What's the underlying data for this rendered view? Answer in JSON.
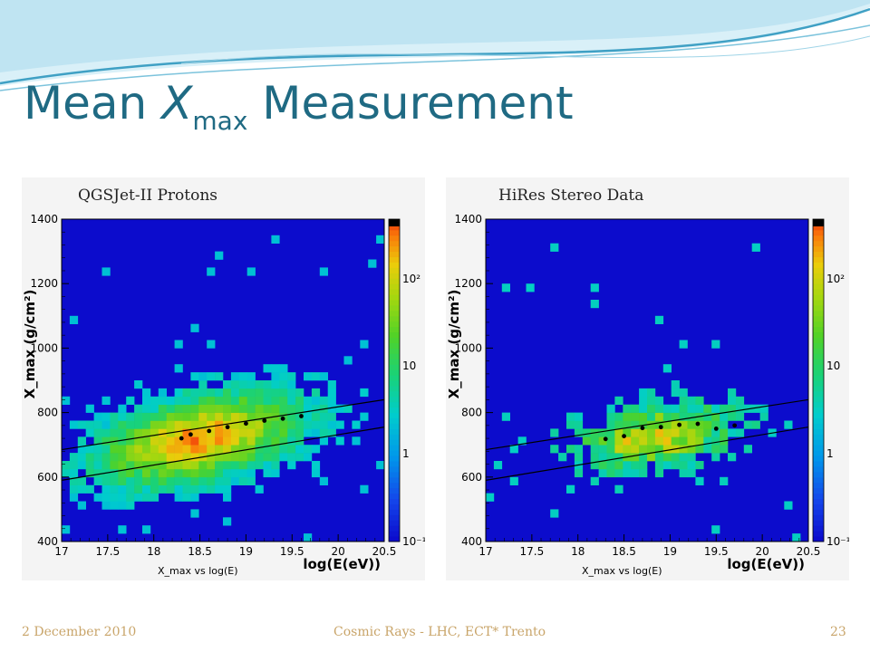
{
  "slide": {
    "title_prefix": "Mean ",
    "title_symbol": "X",
    "title_subscript": "max",
    "title_suffix": " Measurement",
    "footer_date": "2 December 2010",
    "footer_center": "Cosmic Rays - LHC, ECT* Trento",
    "page_number": "23"
  },
  "chart_data": [
    {
      "type": "heatmap",
      "title": "QGSJet-II Protons",
      "xlabel": "log(E(eV))",
      "ylabel": "X_max (g/cm²)",
      "footer_label": "X_max vs log(E)",
      "xlim": [
        17,
        20.5
      ],
      "ylim": [
        400,
        1400
      ],
      "x_ticks": [
        "17",
        "17.5",
        "18",
        "18.5",
        "19",
        "19.5",
        "20",
        "20.5"
      ],
      "y_ticks": [
        "400",
        "600",
        "800",
        "1000",
        "1200",
        "1400"
      ],
      "colorbar_ticks": [
        "10⁻¹",
        "1",
        "10",
        "10²"
      ],
      "colorbar_scale": "log",
      "density": {
        "center_x": 18.5,
        "center_y": 720,
        "spread_x": 0.75,
        "spread_y": 85,
        "slope": 55,
        "peak": 2.3
      },
      "mean_points": [
        {
          "x": 18.3,
          "y": 720
        },
        {
          "x": 18.4,
          "y": 732
        },
        {
          "x": 18.6,
          "y": 743
        },
        {
          "x": 18.8,
          "y": 755
        },
        {
          "x": 19.0,
          "y": 766
        },
        {
          "x": 19.2,
          "y": 775
        },
        {
          "x": 19.4,
          "y": 781
        },
        {
          "x": 19.6,
          "y": 789
        }
      ],
      "band_lines": [
        {
          "x": [
            17,
            20.5
          ],
          "y": [
            685,
            840
          ]
        },
        {
          "x": [
            17,
            20.5
          ],
          "y": [
            590,
            755
          ]
        }
      ]
    },
    {
      "type": "heatmap",
      "title": "HiRes Stereo Data",
      "xlabel": "log(E(eV))",
      "ylabel": "X_max (g/cm²)",
      "footer_label": "X_max vs log(E)",
      "xlim": [
        17,
        20.5
      ],
      "ylim": [
        400,
        1400
      ],
      "x_ticks": [
        "17",
        "17.5",
        "18",
        "18.5",
        "19",
        "19.5",
        "20",
        "20.5"
      ],
      "y_ticks": [
        "400",
        "600",
        "800",
        "1000",
        "1200",
        "1400"
      ],
      "colorbar_ticks": [
        "10⁻¹",
        "1",
        "10",
        "10²"
      ],
      "colorbar_scale": "log",
      "density": {
        "center_x": 18.85,
        "center_y": 725,
        "spread_x": 0.55,
        "spread_y": 60,
        "slope": 40,
        "peak": 1.2
      },
      "mean_points": [
        {
          "x": 18.3,
          "y": 718
        },
        {
          "x": 18.5,
          "y": 727
        },
        {
          "x": 18.7,
          "y": 752
        },
        {
          "x": 18.9,
          "y": 755
        },
        {
          "x": 19.1,
          "y": 762
        },
        {
          "x": 19.3,
          "y": 765
        },
        {
          "x": 19.5,
          "y": 750
        },
        {
          "x": 19.7,
          "y": 760
        }
      ],
      "band_lines": [
        {
          "x": [
            17,
            20.5
          ],
          "y": [
            685,
            840
          ]
        },
        {
          "x": [
            17,
            20.5
          ],
          "y": [
            590,
            755
          ]
        }
      ]
    }
  ],
  "colors": {
    "title": "#1f6a83",
    "footer": "#c9a56a",
    "plot_background": "#0c0ccc",
    "wave_dark": "#4aa7c8",
    "wave_light": "#bfe4f2"
  }
}
